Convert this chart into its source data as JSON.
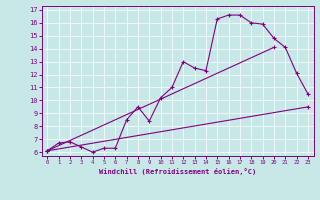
{
  "xlabel": "Windchill (Refroidissement éolien,°C)",
  "background_color": "#c8e8e8",
  "line_color": "#800080",
  "xlim": [
    -0.5,
    23.5
  ],
  "ylim": [
    5.7,
    17.3
  ],
  "xticks": [
    0,
    1,
    2,
    3,
    4,
    5,
    6,
    7,
    8,
    9,
    10,
    11,
    12,
    13,
    14,
    15,
    16,
    17,
    18,
    19,
    20,
    21,
    22,
    23
  ],
  "yticks": [
    6,
    7,
    8,
    9,
    10,
    11,
    12,
    13,
    14,
    15,
    16,
    17
  ],
  "line1_x": [
    0,
    1,
    2,
    3,
    4,
    5,
    6,
    7,
    8,
    9,
    10,
    11,
    12,
    13,
    14,
    15,
    16,
    17,
    18,
    19,
    20,
    21,
    22,
    23
  ],
  "line1_y": [
    6.1,
    6.7,
    6.8,
    6.4,
    6.0,
    6.3,
    6.3,
    8.5,
    9.5,
    8.4,
    10.2,
    11.0,
    13.0,
    12.5,
    12.3,
    16.3,
    16.6,
    16.6,
    16.0,
    15.9,
    14.8,
    14.1,
    12.1,
    10.5
  ],
  "line2_x": [
    0,
    23
  ],
  "line2_y": [
    6.1,
    9.5
  ],
  "line3_x": [
    0,
    20
  ],
  "line3_y": [
    6.1,
    14.1
  ]
}
